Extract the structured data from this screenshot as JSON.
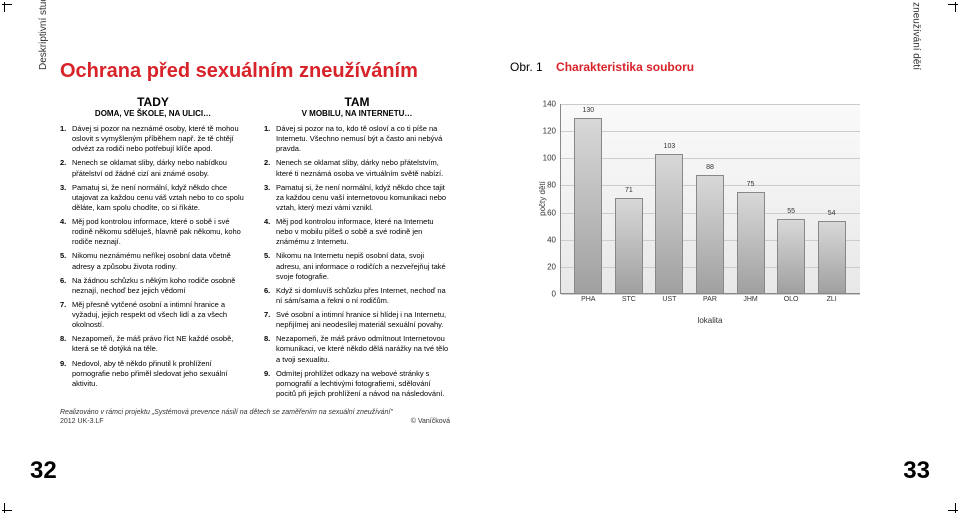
{
  "leftPage": {
    "sideLabel": "Deskriptivní studie mezi dětmi středního školního věku",
    "pageNum": "32",
    "title": "Ochrana před sexuálním zneužíváním",
    "col1": {
      "head": "TADY",
      "sub": "DOMA, VE ŠKOLE, NA ULICI…",
      "items": [
        "Dávej si pozor na neznámé osoby, které tě mohou oslovit s vymyšleným příběhem např. že tě chtějí odvézt za rodiči nebo potřebují klíče apod.",
        "Nenech se oklamat sliby, dárky nebo nabídkou přátelství od žádné cizí ani známé osoby.",
        "Pamatuj si, že není normální, když někdo chce utajovat za každou cenu váš vztah nebo to co spolu děláte, kam spolu chodíte, co si říkáte.",
        "Měj pod kontrolou informace, které o sobě i své rodině někomu sděluješ, hlavně pak někomu, koho rodiče neznají.",
        "Nikomu neznámému neříkej osobní data včetně adresy a způsobu života rodiny.",
        "Na žádnou schůzku s někým koho rodiče osobně neznají, nechoď bez jejich vědomí",
        "Měj přesně vytčené osobní a intimní hranice a vyžaduj, jejich respekt od všech lidí a za všech okolností.",
        "Nezapomeň, že máš právo říct NE každé osobě, která se tě dotýká na těle.",
        "Nedovol, aby tě někdo přinutil k prohlížení pornografie nebo přiměl sledovat jeho sexuální aktivitu."
      ]
    },
    "col2": {
      "head": "TAM",
      "sub": "V MOBILU, NA INTERNETU…",
      "items": [
        "Dávej si pozor na to, kdo tě osloví a co ti píše na Internetu. Všechno nemusí být a často ani nebývá pravda.",
        "Nenech se oklamat sliby, dárky nebo přátelstvím, které ti neznámá osoba ve virtuálním světě nabízí.",
        "Pamatuj si, že není normální, když někdo chce tajit za každou cenu vaší internetovou komunikaci nebo vztah, který mezi vámi vznikl.",
        "Měj pod kontrolou informace, které na Internetu nebo v mobilu píšeš o sobě a své rodině jen známému z Internetu.",
        "Nikomu na Internetu nepiš osobní data, svoji adresu, ani informace o rodičích a nezveřejňuj také svoje fotografie.",
        "Když si domluvíš schůzku přes Internet, nechoď na ní sám/sama a řekni o ní rodičům.",
        "Své osobní a intimní hranice si hlídej i na Internetu, nepřijímej ani neodesílej materiál sexuální povahy.",
        "Nezapomeň, že máš právo odmítnout Internetovou komunikaci, ve které někdo dělá narážky na tvé tělo a tvoji sexualitu.",
        "Odmítej prohlížet odkazy na webové stránky s pornografií a lechtivými fotografiemi, sdělování pocitů při jejich prohlížení a návod na následování."
      ]
    },
    "footnote": "Realizováno v rámci projektu „Systémová prevence násilí na dětech se zaměřením na sexuální zneužívání\"",
    "metaLeft": "2012  UK-3.LF",
    "metaRight": "© Vaníčková"
  },
  "rightPage": {
    "sideLabel": "Sexuální zneužívání dětí",
    "pageNum": "33",
    "figLabelPrefix": "Obr. 1",
    "figLabelTitle": "Charakteristika souboru",
    "chart": {
      "type": "bar",
      "ytitle": "počty dětí",
      "xtitle": "lokalita",
      "ymax": 140,
      "ystep": 20,
      "yticks": [
        0,
        20,
        40,
        60,
        80,
        100,
        120,
        140
      ],
      "categories": [
        "PHA",
        "STC",
        "UST",
        "PAR",
        "JHM",
        "OLO",
        "ZLI"
      ],
      "values": [
        130,
        71,
        103,
        88,
        75,
        55,
        54
      ],
      "bar_fill": "#c8c8c8",
      "bar_border": "#888888",
      "bg_top": "#fafafa",
      "bg_bottom": "#e8e8e8"
    }
  }
}
